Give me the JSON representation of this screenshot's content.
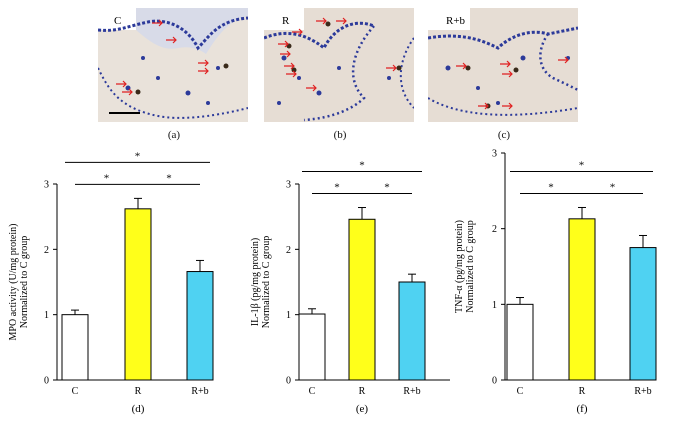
{
  "micrographs": [
    {
      "group": "C",
      "panel": "(a)"
    },
    {
      "group": "R",
      "panel": "(b)"
    },
    {
      "group": "R+b",
      "panel": "(c)"
    }
  ],
  "colors": {
    "tissue_bg": "#e6ddd4",
    "nuclei": "#2c3a9a",
    "arrow": "#e02020",
    "bar_c": "#ffffff",
    "bar_r": "#ffff1a",
    "bar_rb": "#4fd2f2"
  },
  "chart_data": [
    {
      "type": "bar",
      "panel": "(d)",
      "categories": [
        "C",
        "R",
        "R+b"
      ],
      "values": [
        1.0,
        2.62,
        1.66
      ],
      "errors": [
        0.07,
        0.16,
        0.17
      ],
      "ylabel_line1": "MPO activity (U/mg protein)",
      "ylabel_line2": "Normalized to C group",
      "ylim": [
        0,
        3
      ],
      "yticks": [
        "0",
        "1",
        "2",
        "3"
      ],
      "significance": [
        "*",
        "*",
        "*"
      ]
    },
    {
      "type": "bar",
      "panel": "(e)",
      "categories": [
        "C",
        "R",
        "R+b"
      ],
      "values": [
        1.01,
        2.46,
        1.5
      ],
      "errors": [
        0.08,
        0.18,
        0.12
      ],
      "ylabel_line1": "IL-1β (pg/mg protein)",
      "ylabel_line2": "Normalized to C group",
      "ylim": [
        0,
        3
      ],
      "yticks": [
        "0",
        "1",
        "2",
        "3"
      ],
      "significance": [
        "*",
        "*",
        "*"
      ]
    },
    {
      "type": "bar",
      "panel": "(f)",
      "categories": [
        "C",
        "R",
        "R+b"
      ],
      "values": [
        1.0,
        2.13,
        1.75
      ],
      "errors": [
        0.09,
        0.15,
        0.16
      ],
      "ylabel_line1": "TNF-α (pg/mg protein)",
      "ylabel_line2": "Normalized to C group",
      "ylim": [
        0,
        3
      ],
      "yticks": [
        "0",
        "1",
        "2",
        "3"
      ],
      "significance": [
        "*",
        "*",
        "*"
      ]
    }
  ]
}
